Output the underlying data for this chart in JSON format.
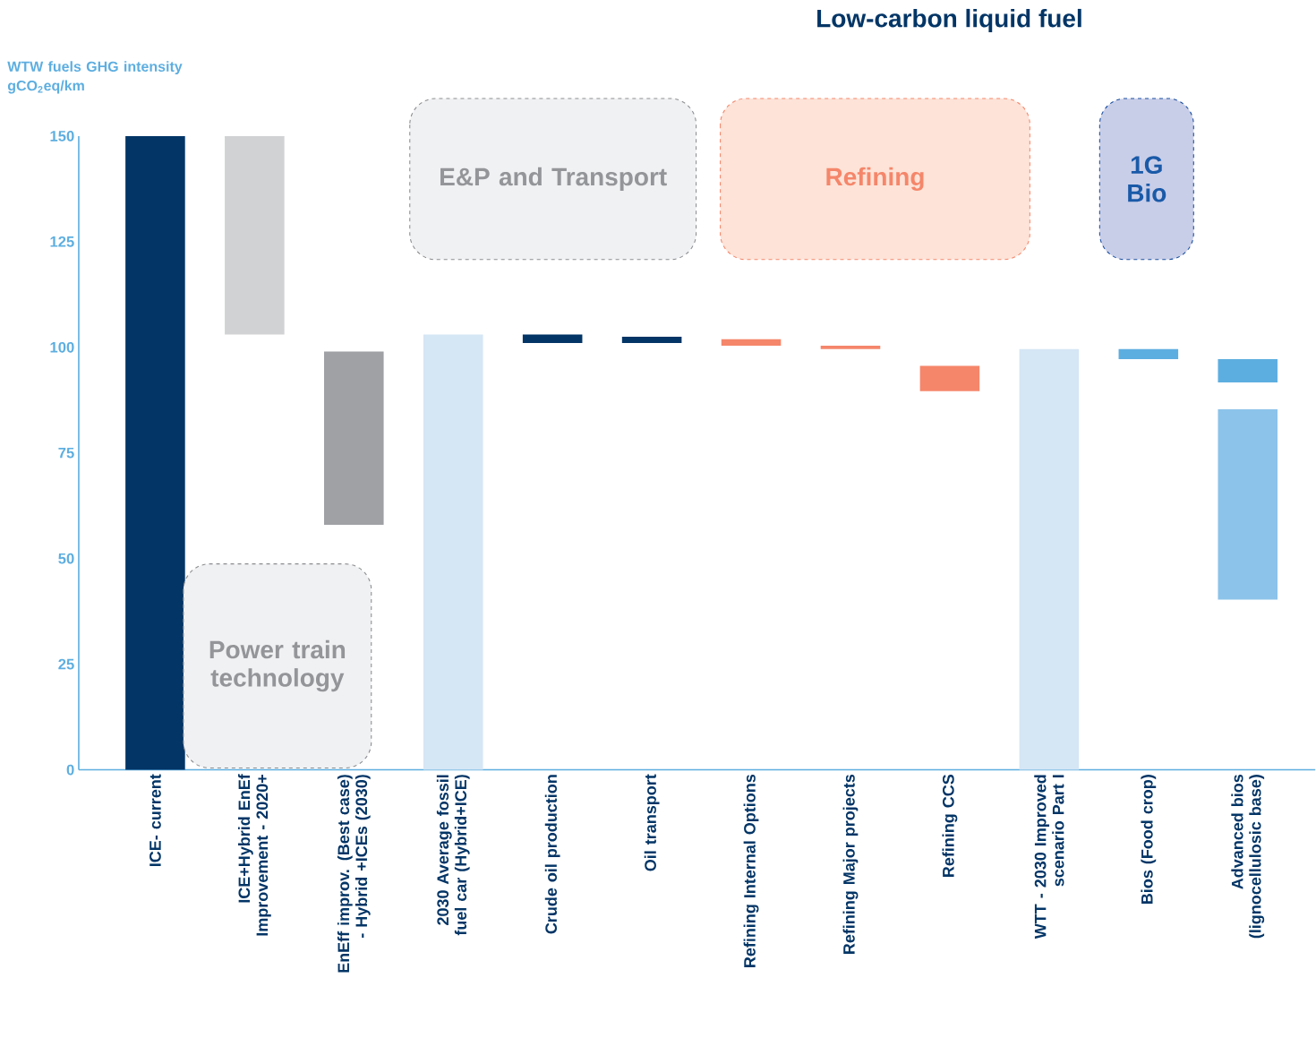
{
  "chart_data": {
    "type": "bar",
    "title": "Low-carbon liquid fuel",
    "ylabel": "WTW fuels GHG intensity gCO$_{2}$eq/km",
    "categories": [
      "ICE- current",
      "ICE+Hybrid EnEf Improvement - 2020+",
      "EnEff improv. (Best case) - Hybrid +ICEs (2030)",
      "2030 Average fossil fuel car (Hybrid+ICE)",
      "Crude oil production",
      "Oil transport",
      "Refining Internal Options",
      "Refining Major projects",
      "Refining CCS",
      "WTT - 2030 Improved scenario Part I",
      "Bios (Food crop)",
      "Advanced bios (lignocellulosic base)"
    ],
    "series": [
      {
        "values": [
          150,
          47,
          null,
          103,
          2,
          1.5,
          1.5,
          0.8,
          null,
          99.6,
          2.4,
          5.5
        ],
        "base": [
          0,
          103,
          null,
          0,
          101,
          101,
          100.4,
          99.6,
          null,
          0,
          97.2,
          91.7
        ],
        "colors": [
          "#033566",
          "#d1d2d4",
          null,
          "#d5e6f5",
          "#033566",
          "#033566",
          "#f5866a",
          "#f5866a",
          null,
          "#d5e6f5",
          "#5daee0",
          "#5daee0"
        ]
      },
      {
        "values": [
          null,
          null,
          41,
          null,
          null,
          null,
          null,
          null,
          6,
          null,
          null,
          45
        ],
        "base": [
          null,
          null,
          58,
          null,
          null,
          null,
          null,
          null,
          89.6,
          null,
          null,
          40.3
        ],
        "colors": [
          null,
          null,
          "#a0a1a4",
          null,
          null,
          null,
          null,
          null,
          "#f5866a",
          null,
          null,
          "#8cc3ea"
        ]
      }
    ],
    "ylim": [
      0,
      150
    ],
    "yticks": [
      0,
      25,
      50,
      75,
      100,
      125,
      150
    ],
    "annotations": [
      "E&P and Transport",
      "Refining",
      "1G Bio",
      "Power train technology"
    ]
  }
}
